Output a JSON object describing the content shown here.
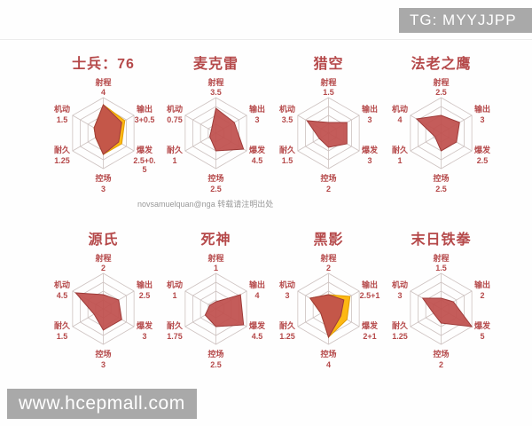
{
  "page": {
    "tg_badge": "TG: MYYJJPP",
    "attribution": "novsamuelquan@nga 转载请注明出处",
    "watermark": "www.hcepmall.com"
  },
  "colors": {
    "title": "#b5494a",
    "label": "#b5494a",
    "polygon_fill": "#c0504d",
    "polygon_stroke": "#9e3b39",
    "bonus_fill": "#fdb813",
    "bonus_stroke": "#e09c00",
    "grid": "#cdc2c0",
    "badge_bg": "#a9a9a9",
    "badge_text": "#ffffff",
    "attribution_text": "#999999"
  },
  "chart_data": [
    {
      "type": "radar",
      "title": "士兵：76",
      "axes": [
        "射程",
        "输出",
        "爆发",
        "控场",
        "耐久",
        "机动"
      ],
      "max": 5,
      "rings": 4,
      "values": [
        4,
        3,
        2.5,
        3,
        1.25,
        1.5
      ],
      "bonus_values": [
        4,
        3.5,
        3,
        3,
        1.25,
        1.5
      ],
      "value_labels": [
        "4",
        "3+0.5",
        "2.5+0.5",
        "3",
        "1.25",
        "1.5"
      ]
    },
    {
      "type": "radar",
      "title": "麦克雷",
      "axes": [
        "射程",
        "输出",
        "爆发",
        "控场",
        "耐久",
        "机动"
      ],
      "max": 5,
      "rings": 4,
      "values": [
        3.5,
        3,
        4.5,
        2.5,
        1,
        0.75
      ],
      "bonus_values": null,
      "value_labels": [
        "3.5",
        "3",
        "4.5",
        "2.5",
        "1",
        "0.75"
      ]
    },
    {
      "type": "radar",
      "title": "猎空",
      "axes": [
        "射程",
        "输出",
        "爆发",
        "控场",
        "耐久",
        "机动"
      ],
      "max": 5,
      "rings": 4,
      "values": [
        1.5,
        3,
        3,
        2,
        1.5,
        3.5
      ],
      "bonus_values": null,
      "value_labels": [
        "1.5",
        "3",
        "3",
        "2",
        "1.5",
        "3.5"
      ]
    },
    {
      "type": "radar",
      "title": "法老之鹰",
      "axes": [
        "射程",
        "输出",
        "爆发",
        "控场",
        "耐久",
        "机动"
      ],
      "max": 5,
      "rings": 4,
      "values": [
        2.5,
        3,
        2.5,
        2.5,
        1,
        4
      ],
      "bonus_values": null,
      "value_labels": [
        "2.5",
        "3",
        "2.5",
        "2.5",
        "1",
        "4"
      ]
    },
    {
      "type": "radar",
      "title": "源氏",
      "axes": [
        "射程",
        "输出",
        "爆发",
        "控场",
        "耐久",
        "机动"
      ],
      "max": 5,
      "rings": 4,
      "values": [
        2,
        2.5,
        3,
        3,
        1.5,
        4.5
      ],
      "bonus_values": null,
      "value_labels": [
        "2",
        "2.5",
        "3",
        "3",
        "1.5",
        "4.5"
      ]
    },
    {
      "type": "radar",
      "title": "死神",
      "axes": [
        "射程",
        "输出",
        "爆发",
        "控场",
        "耐久",
        "机动"
      ],
      "max": 5,
      "rings": 4,
      "values": [
        1,
        4,
        4.5,
        2.5,
        1.75,
        1
      ],
      "bonus_values": null,
      "value_labels": [
        "1",
        "4",
        "4.5",
        "2.5",
        "1.75",
        "1"
      ]
    },
    {
      "type": "radar",
      "title": "黑影",
      "axes": [
        "射程",
        "输出",
        "爆发",
        "控场",
        "耐久",
        "机动"
      ],
      "max": 5,
      "rings": 4,
      "values": [
        2,
        2.5,
        2,
        4,
        1.25,
        3
      ],
      "bonus_values": [
        2,
        3.5,
        3,
        4,
        1.25,
        3
      ],
      "value_labels": [
        "2",
        "2.5+1",
        "2+1",
        "4",
        "1.25",
        "3"
      ]
    },
    {
      "type": "radar",
      "title": "末日铁拳",
      "axes": [
        "射程",
        "输出",
        "爆发",
        "控场",
        "耐久",
        "机动"
      ],
      "max": 5,
      "rings": 4,
      "values": [
        1.5,
        2,
        5,
        2,
        1.25,
        3
      ],
      "bonus_values": null,
      "value_labels": [
        "1.5",
        "2",
        "5",
        "2",
        "1.25",
        "3"
      ]
    }
  ]
}
